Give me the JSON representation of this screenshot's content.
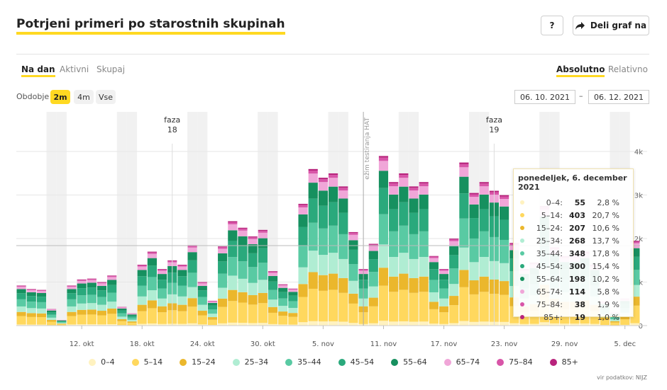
{
  "header": {
    "title": "Potrjeni primeri po starostnih skupinah",
    "help_label": "?",
    "share_label": "Deli graf na",
    "share_icon": "share-arrow-icon"
  },
  "tabs_left": [
    "Na dan",
    "Aktivni",
    "Skupaj"
  ],
  "tabs_right": [
    "Absolutno",
    "Relativno"
  ],
  "period": {
    "label": "Obdobje",
    "options": [
      "2m",
      "4m",
      "Vse"
    ],
    "selected": "2m",
    "date_from": "06. 10. 2021",
    "date_sep": "–",
    "date_to": "06. 12. 2021"
  },
  "tooltip": {
    "title": "ponedeljek, 6. december 2021",
    "rows": [
      {
        "label": "0–4:",
        "value": "55",
        "pct": "2,8 %"
      },
      {
        "label": "5–14:",
        "value": "403",
        "pct": "20,7 %"
      },
      {
        "label": "15–24:",
        "value": "207",
        "pct": "10,6 %"
      },
      {
        "label": "25–34:",
        "value": "268",
        "pct": "13,7 %"
      },
      {
        "label": "35–44:",
        "value": "348",
        "pct": "17,8 %"
      },
      {
        "label": "45–54:",
        "value": "300",
        "pct": "15,4 %"
      },
      {
        "label": "55–64:",
        "value": "198",
        "pct": "10,2 %"
      },
      {
        "label": "65–74:",
        "value": "114",
        "pct": "5,8 %"
      },
      {
        "label": "75–84:",
        "value": "38",
        "pct": "1,9 %"
      },
      {
        "label": "85+:",
        "value": "19",
        "pct": "1,0 %"
      }
    ]
  },
  "source": "vir podatkov: NIJZ",
  "chart_data": {
    "type": "bar",
    "stacked": true,
    "title": "Potrjeni primeri po starostnih skupinah",
    "x_start": "2021-10-06",
    "x_end": "2021-12-06",
    "x_tick_labels": [
      "12. okt",
      "18. okt",
      "24. okt",
      "30. okt",
      "5. nov",
      "11. nov",
      "17. nov",
      "23. nov",
      "29. nov",
      "5. dec"
    ],
    "x_tick_days": [
      6,
      12,
      18,
      24,
      30,
      36,
      42,
      48,
      54,
      60
    ],
    "ylim": [
      0,
      5000
    ],
    "y_ticks": [
      0,
      1000,
      2000,
      3000,
      4000
    ],
    "y_tick_labels": [
      "0",
      "1k",
      "2k",
      "3k",
      "4k"
    ],
    "weekend_days": [
      3,
      4,
      10,
      11,
      17,
      18,
      24,
      25,
      31,
      32,
      38,
      39,
      45,
      46,
      52,
      53,
      59,
      60
    ],
    "annotations": [
      {
        "day": 15,
        "label_line1": "faza",
        "label_line2": "18"
      },
      {
        "day": 47,
        "label_line1": "faza",
        "label_line2": "19"
      },
      {
        "day": 34,
        "label": "ukrep: režim testiranja HAT",
        "label_visible": "ežim testiranja HAT",
        "type": "line"
      }
    ],
    "totals": [
      920,
      840,
      820,
      380,
      130,
      920,
      1060,
      1080,
      1000,
      1150,
      430,
      280,
      1400,
      1700,
      1300,
      1500,
      1400,
      1850,
      1000,
      570,
      1820,
      2400,
      2250,
      2050,
      2200,
      1250,
      950,
      850,
      2800,
      3600,
      3400,
      3500,
      3200,
      2150,
      1300,
      1880,
      3900,
      3300,
      3500,
      3200,
      3300,
      1600,
      1300,
      2000,
      3750,
      3050,
      3300,
      3100,
      3000,
      1900,
      1300,
      1450,
      2750,
      1800,
      1600,
      1600,
      1700,
      1400,
      550,
      300,
      620,
      1950
    ],
    "series": [
      {
        "name": "0–4",
        "color": "#fff2c0",
        "share": 0.028
      },
      {
        "name": "5–14",
        "color": "#ffd85e",
        "share": 0.207
      },
      {
        "name": "15–24",
        "color": "#ebb72c",
        "share": 0.106
      },
      {
        "name": "25–34",
        "color": "#b0edd3",
        "share": 0.137
      },
      {
        "name": "35–44",
        "color": "#59caa3",
        "share": 0.178
      },
      {
        "name": "45–54",
        "color": "#2aa97c",
        "share": 0.154
      },
      {
        "name": "55–64",
        "color": "#16905f",
        "share": 0.102
      },
      {
        "name": "65–74",
        "color": "#f0a6d8",
        "share": 0.058
      },
      {
        "name": "75–84",
        "color": "#d855a8",
        "share": 0.019
      },
      {
        "name": "85+",
        "color": "#b8237c",
        "share": 0.01
      }
    ]
  }
}
